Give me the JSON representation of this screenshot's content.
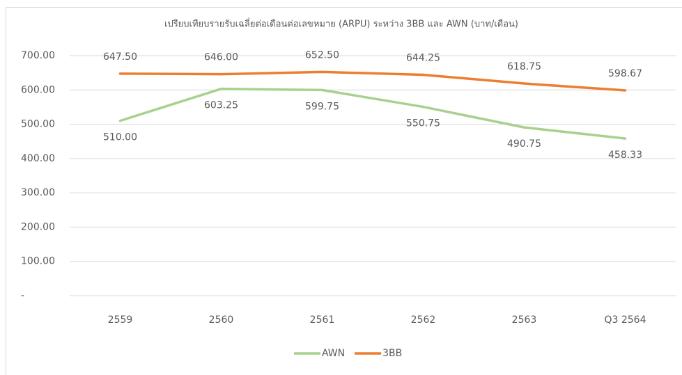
{
  "chart_data": {
    "type": "line",
    "title": "เปรียบเทียบรายรับเฉลี่ยต่อเดือนต่อเลขหมาย (ARPU) ระหว่าง 3BB และ AWN (บาท/เดือน)",
    "categories": [
      "2559",
      "2560",
      "2561",
      "2562",
      "2563",
      "Q3 2564"
    ],
    "series": [
      {
        "name": "AWN",
        "color": "#a9d18e",
        "values": [
          510,
          603.25,
          599.75,
          550.75,
          490.75,
          458.33
        ],
        "value_labels": [
          "510.00",
          "603.25",
          "599.75",
          "550.75",
          "490.75",
          "458.33"
        ]
      },
      {
        "name": "3BB",
        "color": "#ed7d31",
        "values": [
          647.5,
          646,
          652.5,
          644.25,
          618.75,
          598.67
        ],
        "value_labels": [
          "647.50",
          "646.00",
          "652.50",
          "644.25",
          "618.75",
          "598.67"
        ]
      }
    ],
    "ylim": [
      0,
      700
    ],
    "yticks": [
      {
        "value": 0,
        "label": "-"
      },
      {
        "value": 100,
        "label": "100.00"
      },
      {
        "value": 200,
        "label": "200.00"
      },
      {
        "value": 300,
        "label": "300.00"
      },
      {
        "value": 400,
        "label": "400.00"
      },
      {
        "value": 500,
        "label": "500.00"
      },
      {
        "value": 600,
        "label": "600.00"
      },
      {
        "value": 700,
        "label": "700.00"
      }
    ],
    "grid": true,
    "legend": "bottom"
  }
}
